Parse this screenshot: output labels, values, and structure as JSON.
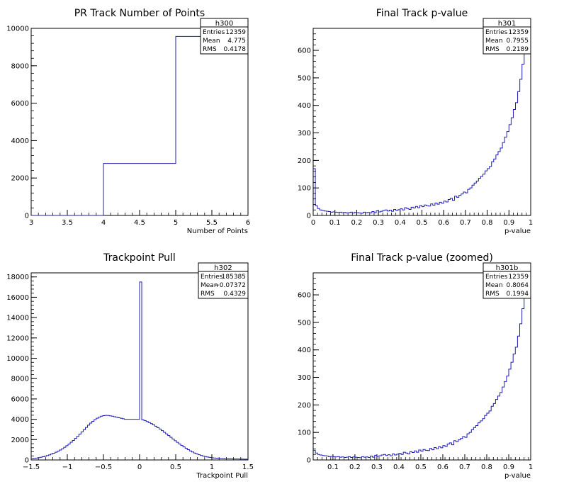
{
  "chart_data": [
    {
      "type": "histogram",
      "title": "PR Track Number of Points",
      "xlabel": "Number of Points",
      "xlim": [
        3,
        6
      ],
      "ylim": [
        0,
        10000
      ],
      "xticks": [
        3,
        3.5,
        4,
        4.5,
        5,
        5.5,
        6
      ],
      "xtick_labels": [
        "3",
        "3.5",
        "4",
        "4.5",
        "5",
        "5.5",
        "6"
      ],
      "yticks": [
        0,
        2000,
        4000,
        6000,
        8000,
        10000
      ],
      "ytick_labels": [
        "0",
        "2000",
        "4000",
        "6000",
        "8000",
        "10000"
      ],
      "bins": [
        [
          3,
          4,
          0
        ],
        [
          4,
          5,
          2780
        ],
        [
          5,
          6,
          9570
        ]
      ],
      "stats": {
        "name": "h300",
        "rows": [
          [
            "Entries",
            "12359"
          ],
          [
            "Mean",
            "4.775"
          ],
          [
            "RMS",
            "0.4178"
          ]
        ]
      }
    },
    {
      "type": "histogram",
      "title": "Final Track p-value",
      "xlabel": "p-value",
      "xlim": [
        0,
        1
      ],
      "ylim": [
        0,
        680
      ],
      "xticks": [
        0,
        0.1,
        0.2,
        0.3,
        0.4,
        0.5,
        0.6,
        0.7,
        0.8,
        0.9,
        1
      ],
      "xtick_labels": [
        "0",
        "0.1",
        "0.2",
        "0.3",
        "0.4",
        "0.5",
        "0.6",
        "0.7",
        "0.8",
        "0.9",
        "1"
      ],
      "yticks": [
        0,
        100,
        200,
        300,
        400,
        500,
        600
      ],
      "ytick_labels": [
        "0",
        "100",
        "200",
        "300",
        "400",
        "500",
        "600"
      ],
      "bin_start": 0,
      "bin_width": 0.01,
      "values": [
        170,
        35,
        25,
        20,
        18,
        16,
        15,
        14,
        12,
        13,
        12,
        11,
        12,
        10,
        11,
        9,
        10,
        12,
        9,
        11,
        10,
        9,
        8,
        12,
        10,
        11,
        9,
        14,
        10,
        17,
        13,
        15,
        18,
        20,
        16,
        19,
        15,
        22,
        18,
        21,
        24,
        20,
        28,
        25,
        22,
        30,
        27,
        33,
        28,
        36,
        32,
        38,
        35,
        34,
        42,
        37,
        45,
        41,
        48,
        44,
        52,
        49,
        58,
        62,
        55,
        70,
        66,
        73,
        78,
        85,
        82,
        95,
        100,
        110,
        118,
        125,
        135,
        142,
        150,
        162,
        170,
        178,
        195,
        205,
        220,
        232,
        245,
        265,
        285,
        305,
        330,
        355,
        385,
        410,
        450,
        495,
        550,
        600,
        640,
        670
      ],
      "stats": {
        "name": "h301",
        "rows": [
          [
            "Entries",
            "12359"
          ],
          [
            "Mean",
            "0.7955"
          ],
          [
            "RMS",
            "0.2189"
          ]
        ]
      }
    },
    {
      "type": "histogram",
      "title": "Trackpoint Pull",
      "xlabel": "Trackpoint Pull",
      "xlim": [
        -1.5,
        1.5
      ],
      "ylim": [
        0,
        18400
      ],
      "xticks": [
        -1.5,
        -1,
        -0.5,
        0,
        0.5,
        1,
        1.5
      ],
      "xtick_labels": [
        "−1.5",
        "−1",
        "−0.5",
        "0",
        "0.5",
        "1",
        "1.5"
      ],
      "yticks": [
        0,
        2000,
        4000,
        6000,
        8000,
        10000,
        12000,
        14000,
        16000,
        18000
      ],
      "ytick_labels": [
        "0",
        "2000",
        "4000",
        "6000",
        "8000",
        "10000",
        "12000",
        "14000",
        "16000",
        "18000"
      ],
      "bin_start": -1.5,
      "bin_width": 0.03,
      "values": [
        120,
        150,
        180,
        220,
        260,
        310,
        370,
        430,
        500,
        580,
        660,
        760,
        860,
        980,
        1100,
        1250,
        1400,
        1560,
        1740,
        1920,
        2120,
        2320,
        2540,
        2760,
        2980,
        3200,
        3420,
        3620,
        3800,
        3960,
        4100,
        4220,
        4300,
        4360,
        4380,
        4370,
        4340,
        4300,
        4250,
        4200,
        4150,
        4100,
        4050,
        4000,
        4000,
        4000,
        4000,
        4000,
        4000,
        4000,
        17500,
        3950,
        3880,
        3780,
        3680,
        3570,
        3450,
        3320,
        3180,
        3040,
        2880,
        2720,
        2560,
        2400,
        2230,
        2060,
        1890,
        1730,
        1570,
        1420,
        1280,
        1140,
        1010,
        890,
        780,
        680,
        590,
        510,
        440,
        380,
        330,
        290,
        250,
        220,
        195,
        175,
        160,
        145,
        135,
        125,
        118,
        112,
        106,
        100,
        96,
        92,
        88,
        84,
        80,
        76
      ],
      "stats": {
        "name": "h302",
        "rows": [
          [
            "Entries",
            "185385"
          ],
          [
            "Mean",
            "−0.07372"
          ],
          [
            "RMS",
            "0.4329"
          ]
        ]
      }
    },
    {
      "type": "histogram",
      "title": "Final Track p-value (zoomed)",
      "xlabel": "p-value",
      "xlim": [
        0.01,
        1
      ],
      "ylim": [
        0,
        680
      ],
      "xticks": [
        0.1,
        0.2,
        0.3,
        0.4,
        0.5,
        0.6,
        0.7,
        0.8,
        0.9,
        1
      ],
      "xtick_labels": [
        "0.1",
        "0.2",
        "0.3",
        "0.4",
        "0.5",
        "0.6",
        "0.7",
        "0.8",
        "0.9",
        "1"
      ],
      "yticks": [
        0,
        100,
        200,
        300,
        400,
        500,
        600
      ],
      "ytick_labels": [
        "0",
        "100",
        "200",
        "300",
        "400",
        "500",
        "600"
      ],
      "bin_start": 0.01,
      "bin_width": 0.01,
      "values": [
        35,
        25,
        20,
        18,
        16,
        15,
        14,
        12,
        13,
        12,
        11,
        12,
        10,
        11,
        9,
        10,
        12,
        9,
        11,
        10,
        9,
        8,
        12,
        10,
        11,
        9,
        14,
        10,
        17,
        13,
        15,
        18,
        20,
        16,
        19,
        15,
        22,
        18,
        21,
        24,
        20,
        28,
        25,
        22,
        30,
        27,
        33,
        28,
        36,
        32,
        38,
        35,
        34,
        42,
        37,
        45,
        41,
        48,
        44,
        52,
        49,
        58,
        62,
        55,
        70,
        66,
        73,
        78,
        85,
        82,
        95,
        100,
        110,
        118,
        125,
        135,
        142,
        150,
        162,
        170,
        178,
        195,
        205,
        220,
        232,
        245,
        265,
        285,
        305,
        330,
        355,
        385,
        410,
        450,
        495,
        550,
        600,
        640,
        670
      ],
      "stats": {
        "name": "h301b",
        "rows": [
          [
            "Entries",
            "12359"
          ],
          [
            "Mean",
            "0.8064"
          ],
          [
            "RMS",
            "0.1994"
          ]
        ]
      }
    }
  ]
}
